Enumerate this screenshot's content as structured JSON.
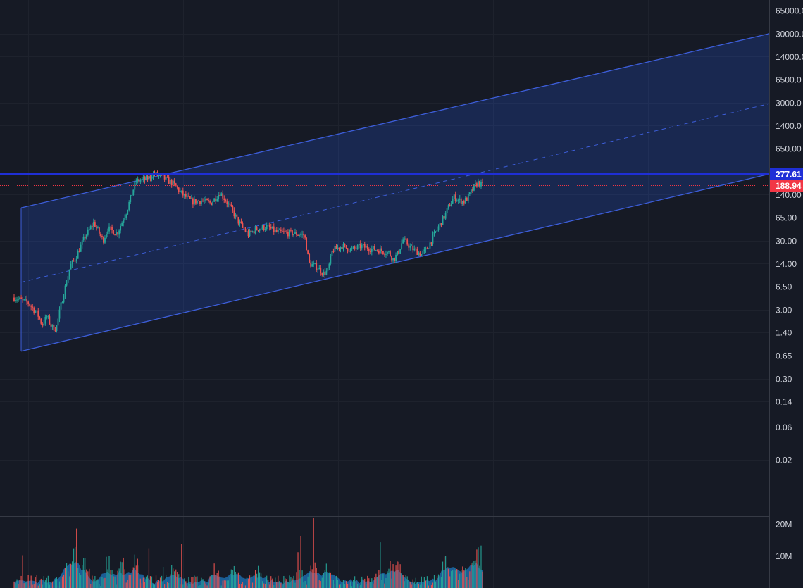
{
  "chart_data": {
    "type": "candlestick",
    "scale": "log",
    "y_ticks": [
      "65000.0",
      "30000.0",
      "14000.0",
      "6500.0",
      "3000.0",
      "1400.0",
      "650.00",
      "277.61",
      "188.94",
      "140.00",
      "65.00",
      "30.00",
      "14.00",
      "6.50",
      "3.00",
      "1.40",
      "0.65",
      "0.30",
      "0.14",
      "0.06",
      "0.02"
    ],
    "y_tick_values": [
      65000,
      30000,
      14000,
      6500,
      3000,
      1400,
      650,
      140,
      65,
      30,
      14,
      6.5,
      3,
      1.4,
      0.65,
      0.3,
      0.14,
      0.06,
      0.02
    ],
    "horizontal_line": {
      "label": "277.61",
      "value": 277.61,
      "color": "#2962ff"
    },
    "last_price": {
      "label": "188.94",
      "value": 188.94,
      "color": "#f23645"
    },
    "price_path": [
      [
        0,
        4.5
      ],
      [
        3,
        3.8
      ],
      [
        5,
        2.6
      ],
      [
        6,
        1.8
      ],
      [
        7,
        2.4
      ],
      [
        8,
        1.7
      ],
      [
        9,
        1.6
      ],
      [
        10,
        3.5
      ],
      [
        12,
        13
      ],
      [
        13,
        16
      ],
      [
        15,
        33
      ],
      [
        17,
        55
      ],
      [
        19,
        30
      ],
      [
        20,
        45
      ],
      [
        22,
        38
      ],
      [
        24,
        80
      ],
      [
        26,
        220
      ],
      [
        28,
        230
      ],
      [
        30,
        280
      ],
      [
        32,
        240
      ],
      [
        34,
        200
      ],
      [
        36,
        140
      ],
      [
        38,
        110
      ],
      [
        40,
        115
      ],
      [
        42,
        105
      ],
      [
        44,
        150
      ],
      [
        46,
        95
      ],
      [
        48,
        55
      ],
      [
        50,
        37
      ],
      [
        52,
        45
      ],
      [
        54,
        48
      ],
      [
        56,
        40
      ],
      [
        58,
        39
      ],
      [
        60,
        38
      ],
      [
        62,
        36
      ],
      [
        63,
        14
      ],
      [
        65,
        12
      ],
      [
        66,
        10
      ],
      [
        67,
        11
      ],
      [
        68,
        22
      ],
      [
        70,
        25
      ],
      [
        72,
        22
      ],
      [
        74,
        25
      ],
      [
        76,
        23
      ],
      [
        78,
        22
      ],
      [
        80,
        20
      ],
      [
        81,
        16
      ],
      [
        82,
        20
      ],
      [
        83,
        31
      ],
      [
        85,
        23
      ],
      [
        87,
        19
      ],
      [
        88,
        22
      ],
      [
        90,
        40
      ],
      [
        92,
        70
      ],
      [
        93,
        100
      ],
      [
        94,
        130
      ],
      [
        95,
        115
      ],
      [
        96,
        110
      ],
      [
        97,
        130
      ],
      [
        98,
        170
      ],
      [
        99,
        210
      ],
      [
        100,
        188.94
      ]
    ],
    "channel": {
      "upper": {
        "start": [
          0,
          90
        ],
        "end": [
          160,
          30000
        ]
      },
      "middle": {
        "start": [
          0,
          7.5
        ],
        "end": [
          160,
          2900
        ]
      },
      "lower": {
        "start": [
          0,
          0.75
        ],
        "end": [
          160,
          277.61
        ]
      }
    },
    "volume": {
      "ticks": [
        "20M",
        "10M"
      ],
      "tick_values": [
        20000000,
        10000000
      ],
      "max": 22000000,
      "bursts": [
        [
          11,
          8000000
        ],
        [
          13,
          13000000
        ],
        [
          15,
          6000000
        ],
        [
          20,
          8000000
        ],
        [
          23,
          7000000
        ],
        [
          26,
          10000000
        ],
        [
          34,
          5000000
        ],
        [
          43,
          4500000
        ],
        [
          47,
          6500000
        ],
        [
          52,
          5000000
        ],
        [
          61,
          4000000
        ],
        [
          64,
          9000000
        ],
        [
          67,
          6500000
        ],
        [
          78,
          3800000
        ],
        [
          80,
          5000000
        ],
        [
          82,
          7000000
        ],
        [
          92,
          9500000
        ],
        [
          94,
          8000000
        ],
        [
          96,
          5500000
        ],
        [
          98,
          7500000
        ],
        [
          99,
          9000000
        ]
      ]
    }
  }
}
